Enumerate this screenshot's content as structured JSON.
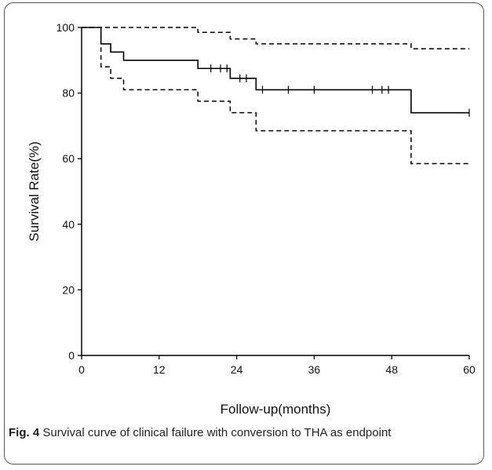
{
  "caption": {
    "label": "Fig. 4",
    "text": "Survival curve of clinical failure with conversion to THA as endpoint"
  },
  "chart_data": {
    "type": "line",
    "title": "",
    "xlabel": "Follow-up(months)",
    "ylabel": "Survival Rate(%)",
    "xlim": [
      0,
      60
    ],
    "ylim": [
      0,
      100
    ],
    "xticks": [
      0,
      12,
      24,
      36,
      48,
      60
    ],
    "yticks": [
      0,
      20,
      40,
      60,
      80,
      100
    ],
    "grid": false,
    "series": [
      {
        "style": "solid",
        "color": "#000000",
        "step": true,
        "x": [
          0,
          3,
          4.5,
          6.5,
          18,
          23,
          27,
          51,
          60
        ],
        "y": [
          100,
          95,
          92.5,
          90,
          87.5,
          84.5,
          81,
          74,
          74
        ],
        "censored_x": [
          20,
          21.5,
          22.5,
          24.5,
          25.5,
          28,
          32,
          36,
          45,
          46.5,
          47.5,
          60
        ]
      },
      {
        "style": "dashed",
        "color": "#000000",
        "step": true,
        "x": [
          0,
          18,
          23,
          27,
          51,
          60
        ],
        "y": [
          100,
          98.5,
          96.5,
          95,
          93.5,
          93.5
        ]
      },
      {
        "style": "dashed",
        "color": "#000000",
        "step": true,
        "x": [
          0,
          3,
          4.5,
          6.5,
          18,
          23,
          27,
          51,
          60
        ],
        "y": [
          100,
          88,
          84.5,
          81,
          77.5,
          74,
          68.5,
          58.5,
          58.5
        ]
      }
    ]
  }
}
